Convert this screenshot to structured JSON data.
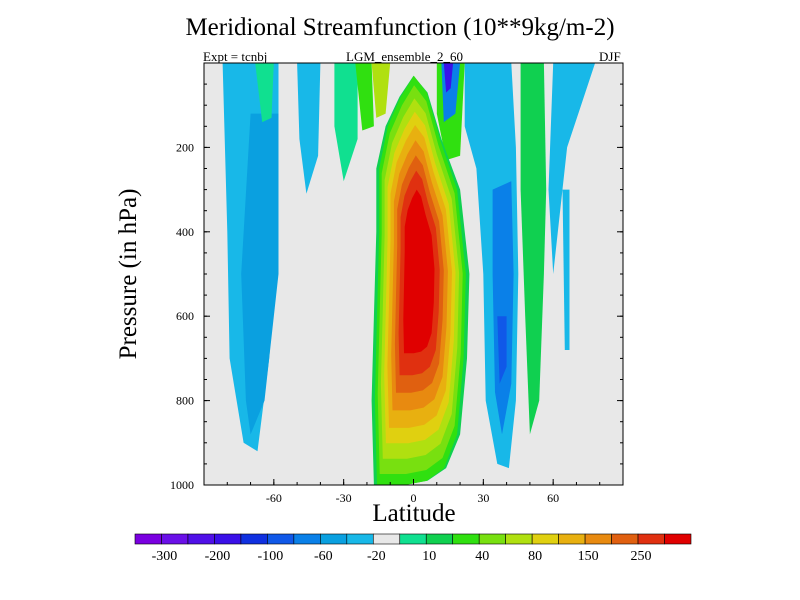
{
  "chart_data": {
    "type": "contour",
    "title": "Meridional Streamfunction (10**9kg/m-2)",
    "left_label": "Expt = tcnbj",
    "center_label": "LGM_ensemble_2_60",
    "right_label": "DJF",
    "xlabel": "Latitude",
    "ylabel": "Pressure (in hPa)",
    "xlim": [
      -90,
      90
    ],
    "ylim": [
      0,
      1000
    ],
    "x_ticks": [
      -60,
      -30,
      0,
      30,
      60
    ],
    "y_ticks": [
      200,
      400,
      600,
      800,
      1000
    ],
    "colorbar": {
      "colors": [
        "#7a00e0",
        "#6a10e8",
        "#5010e8",
        "#3a10e8",
        "#1030e0",
        "#1058e8",
        "#0a80e8",
        "#0aa0e0",
        "#18b8e8",
        "#e8e8e8",
        "#10e090",
        "#10d050",
        "#30e010",
        "#78e010",
        "#b0e010",
        "#e0d010",
        "#e8b010",
        "#e88a10",
        "#e06010",
        "#e03010",
        "#e00000"
      ],
      "labels": [
        -300,
        -200,
        -100,
        -60,
        -20,
        10,
        40,
        80,
        150,
        250
      ]
    },
    "fields": [
      {
        "name": "deep-tropical-cell",
        "lat_center": 2,
        "level_center_hPa": 480,
        "peak": 300
      },
      {
        "name": "sh-midlat-negative",
        "lat_center": -70,
        "level_center_hPa": 500,
        "peak": -20
      },
      {
        "name": "nh-midlat-negative",
        "lat_center": 40,
        "level_center_hPa": 560,
        "peak": -60
      },
      {
        "name": "nh-positive-band",
        "lat_center": 55,
        "level_center_hPa": 500,
        "peak": 40
      }
    ]
  }
}
